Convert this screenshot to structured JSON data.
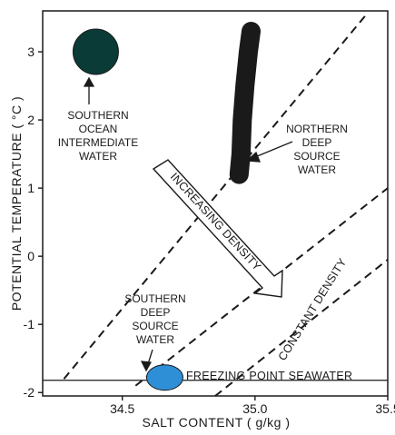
{
  "chart_data": {
    "type": "scatter",
    "title": "",
    "xlabel": "SALT CONTENT ( g/kg )",
    "ylabel": "POTENTIAL TEMPERATURE ( °C )",
    "xlim": [
      34.2,
      35.5
    ],
    "ylim": [
      -2.05,
      3.6
    ],
    "x_ticks": [
      34.5,
      35.0,
      35.5
    ],
    "x_tick_labels": [
      "34.5",
      "35.0",
      "35.5"
    ],
    "y_ticks": [
      3,
      2,
      1,
      0,
      -1,
      -2
    ],
    "y_tick_labels": [
      "3",
      "2",
      "1",
      "0",
      "-1",
      "-2"
    ],
    "grid": false,
    "legend": "none",
    "water_masses": [
      {
        "label_lines": [
          "SOUTHERN",
          "OCEAN",
          "INTERMEDIATE",
          "WATER"
        ],
        "shape": "circle",
        "x": 34.4,
        "y": 3.0,
        "color": "#0b3b36"
      },
      {
        "label_lines": [
          "NORTHERN",
          "DEEP",
          "SOURCE",
          "WATER"
        ],
        "shape": "band",
        "path": [
          [
            34.985,
            3.3
          ],
          [
            34.975,
            3.0
          ],
          [
            34.962,
            2.5
          ],
          [
            34.952,
            2.0
          ],
          [
            34.947,
            1.5
          ],
          [
            34.94,
            1.2
          ]
        ],
        "color": "#f2a60f"
      },
      {
        "label_lines": [
          "SOUTHERN",
          "DEEP",
          "SOURCE",
          "WATER"
        ],
        "shape": "ellipse",
        "x": 34.66,
        "y": -1.78,
        "color": "#2f8fd6"
      }
    ],
    "constant_density_lines": [
      {
        "points": [
          [
            34.28,
            -1.8
          ],
          [
            35.42,
            3.55
          ]
        ]
      },
      {
        "points": [
          [
            34.55,
            -1.9
          ],
          [
            35.5,
            1.0
          ]
        ]
      },
      {
        "points": [
          [
            34.85,
            -2.05
          ],
          [
            35.5,
            -0.05
          ]
        ]
      }
    ],
    "freezing_line": {
      "y": -1.82
    },
    "annotations": {
      "freezing": "FREEZING POINT SEAWATER",
      "density_arrow": "INCREASING DENSITY",
      "constant": "CONSTANT DENSITY"
    }
  }
}
